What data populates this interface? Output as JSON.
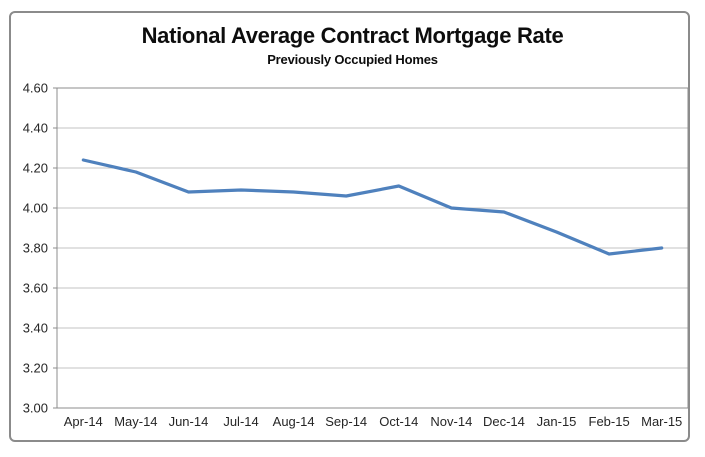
{
  "window": {
    "background_color": "#FFFFFF",
    "frame_border_color": "#8B8B8B"
  },
  "chart_data": {
    "type": "line",
    "title": "National Average Contract Mortgage Rate",
    "subtitle": "Previously Occupied Homes",
    "categories": [
      "Apr-14",
      "May-14",
      "Jun-14",
      "Jul-14",
      "Aug-14",
      "Sep-14",
      "Oct-14",
      "Nov-14",
      "Dec-14",
      "Jan-15",
      "Feb-15",
      "Mar-15"
    ],
    "values": [
      4.24,
      4.18,
      4.08,
      4.09,
      4.08,
      4.06,
      4.11,
      4.0,
      3.98,
      3.88,
      3.77,
      3.8
    ],
    "xlabel": "",
    "ylabel": "",
    "ylim": [
      3.0,
      4.6
    ],
    "ytick_step": 0.2,
    "ytick_labels": [
      "3.00",
      "3.20",
      "3.40",
      "3.60",
      "3.80",
      "4.00",
      "4.20",
      "4.40",
      "4.60"
    ],
    "grid": true,
    "legend_position": "none",
    "line_color": "#4F81BD",
    "gridline_color": "#C3C3C3",
    "axis_line_color": "#8C8C8C",
    "axis_text_color": "#262626"
  }
}
